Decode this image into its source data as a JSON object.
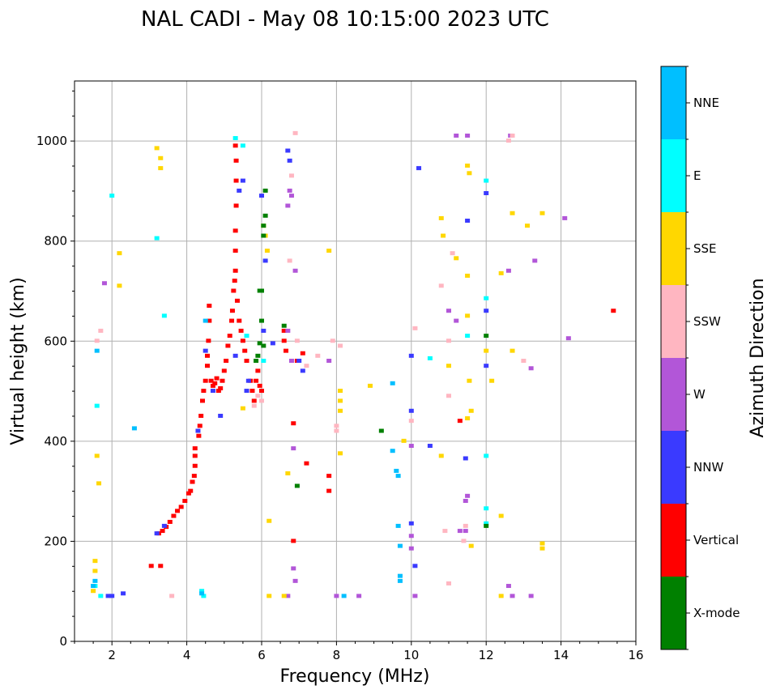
{
  "chart_data": {
    "type": "scatter",
    "title": "NAL CADI - May 08 10:15:00 2023 UTC",
    "xlabel": "Frequency (MHz)",
    "ylabel": "Virtual height (km)",
    "xlim": [
      1,
      16
    ],
    "ylim": [
      0,
      1120
    ],
    "xticks": [
      2,
      4,
      6,
      8,
      10,
      12,
      14,
      16
    ],
    "yticks": [
      0,
      200,
      400,
      600,
      800,
      1000
    ],
    "grid": true,
    "colorbar": {
      "label": "Azimuth Direction",
      "categories": [
        {
          "name": "X-mode",
          "color": "#008000"
        },
        {
          "name": "Vertical",
          "color": "#ff0000"
        },
        {
          "name": "NNW",
          "color": "#3a3aff"
        },
        {
          "name": "W",
          "color": "#b256d8"
        },
        {
          "name": "SSW",
          "color": "#ffb6c1"
        },
        {
          "name": "SSE",
          "color": "#ffd700"
        },
        {
          "name": "E",
          "color": "#00ffff"
        },
        {
          "name": "NNE",
          "color": "#00bfff"
        }
      ]
    },
    "series": [
      {
        "name": "Vertical",
        "points": [
          [
            3.25,
            215
          ],
          [
            3.35,
            220
          ],
          [
            3.45,
            228
          ],
          [
            3.55,
            238
          ],
          [
            3.65,
            250
          ],
          [
            3.75,
            260
          ],
          [
            3.85,
            268
          ],
          [
            3.95,
            280
          ],
          [
            4.05,
            295
          ],
          [
            4.1,
            300
          ],
          [
            4.15,
            318
          ],
          [
            4.2,
            330
          ],
          [
            4.22,
            350
          ],
          [
            4.22,
            370
          ],
          [
            4.22,
            385
          ],
          [
            4.32,
            410
          ],
          [
            4.35,
            430
          ],
          [
            4.38,
            450
          ],
          [
            4.42,
            480
          ],
          [
            4.45,
            500
          ],
          [
            4.5,
            520
          ],
          [
            4.55,
            550
          ],
          [
            4.55,
            570
          ],
          [
            4.58,
            600
          ],
          [
            4.6,
            640
          ],
          [
            4.6,
            670
          ],
          [
            4.65,
            520
          ],
          [
            4.7,
            510
          ],
          [
            4.75,
            515
          ],
          [
            4.8,
            525
          ],
          [
            4.85,
            500
          ],
          [
            4.9,
            505
          ],
          [
            4.95,
            520
          ],
          [
            5.0,
            540
          ],
          [
            5.05,
            560
          ],
          [
            5.1,
            590
          ],
          [
            5.15,
            610
          ],
          [
            5.2,
            640
          ],
          [
            5.22,
            660
          ],
          [
            5.25,
            700
          ],
          [
            5.28,
            720
          ],
          [
            5.3,
            740
          ],
          [
            5.3,
            780
          ],
          [
            5.3,
            820
          ],
          [
            5.32,
            870
          ],
          [
            5.32,
            920
          ],
          [
            5.32,
            960
          ],
          [
            5.3,
            990
          ],
          [
            5.35,
            680
          ],
          [
            5.4,
            640
          ],
          [
            5.45,
            620
          ],
          [
            5.5,
            600
          ],
          [
            5.55,
            580
          ],
          [
            5.6,
            560
          ],
          [
            5.7,
            520
          ],
          [
            5.75,
            500
          ],
          [
            5.8,
            480
          ],
          [
            5.85,
            520
          ],
          [
            5.9,
            540
          ],
          [
            5.95,
            510
          ],
          [
            6.0,
            500
          ],
          [
            6.6,
            620
          ],
          [
            6.6,
            600
          ],
          [
            6.65,
            580
          ],
          [
            6.85,
            435
          ],
          [
            6.85,
            200
          ],
          [
            6.95,
            560
          ],
          [
            7.1,
            575
          ],
          [
            7.2,
            355
          ],
          [
            7.8,
            330
          ],
          [
            7.8,
            300
          ],
          [
            11.3,
            440
          ],
          [
            15.4,
            660
          ],
          [
            3.05,
            150
          ],
          [
            3.3,
            150
          ]
        ]
      },
      {
        "name": "NNW",
        "points": [
          [
            3.2,
            215
          ],
          [
            3.4,
            230
          ],
          [
            4.3,
            420
          ],
          [
            4.5,
            580
          ],
          [
            4.7,
            500
          ],
          [
            4.9,
            450
          ],
          [
            5.3,
            570
          ],
          [
            5.4,
            900
          ],
          [
            5.5,
            920
          ],
          [
            5.6,
            500
          ],
          [
            5.65,
            520
          ],
          [
            6.1,
            760
          ],
          [
            6.05,
            620
          ],
          [
            6.3,
            595
          ],
          [
            6.7,
            980
          ],
          [
            6.75,
            960
          ],
          [
            7.0,
            560
          ],
          [
            7.1,
            540
          ],
          [
            10.0,
            570
          ],
          [
            10.0,
            460
          ],
          [
            10.2,
            945
          ],
          [
            10.5,
            390
          ],
          [
            10.0,
            235
          ],
          [
            10.1,
            150
          ],
          [
            11.5,
            840
          ],
          [
            11.45,
            365
          ],
          [
            12.0,
            895
          ],
          [
            12.0,
            550
          ],
          [
            12.0,
            660
          ],
          [
            1.9,
            90
          ],
          [
            2.0,
            90
          ],
          [
            2.3,
            95
          ],
          [
            6.0,
            890
          ]
        ]
      },
      {
        "name": "W",
        "points": [
          [
            6.7,
            870
          ],
          [
            6.75,
            900
          ],
          [
            6.8,
            890
          ],
          [
            6.7,
            620
          ],
          [
            6.8,
            560
          ],
          [
            6.85,
            385
          ],
          [
            6.85,
            145
          ],
          [
            6.9,
            120
          ],
          [
            6.7,
            90
          ],
          [
            7.8,
            560
          ],
          [
            8.0,
            90
          ],
          [
            8.6,
            90
          ],
          [
            10.0,
            390
          ],
          [
            10.0,
            210
          ],
          [
            10.0,
            185
          ],
          [
            10.1,
            90
          ],
          [
            11.2,
            1010
          ],
          [
            11.5,
            1010
          ],
          [
            11.5,
            290
          ],
          [
            11.45,
            280
          ],
          [
            11.45,
            220
          ],
          [
            11.3,
            220
          ],
          [
            11.2,
            640
          ],
          [
            11.0,
            660
          ],
          [
            12.6,
            740
          ],
          [
            12.65,
            1010
          ],
          [
            12.6,
            110
          ],
          [
            12.7,
            90
          ],
          [
            13.3,
            760
          ],
          [
            13.2,
            545
          ],
          [
            13.2,
            90
          ],
          [
            14.1,
            845
          ],
          [
            14.2,
            605
          ],
          [
            6.9,
            740
          ],
          [
            1.8,
            715
          ]
        ]
      },
      {
        "name": "SSW",
        "points": [
          [
            5.9,
            490
          ],
          [
            6.0,
            480
          ],
          [
            5.8,
            470
          ],
          [
            6.75,
            760
          ],
          [
            6.8,
            930
          ],
          [
            6.9,
            1015
          ],
          [
            6.95,
            600
          ],
          [
            7.2,
            550
          ],
          [
            7.5,
            570
          ],
          [
            7.9,
            600
          ],
          [
            8.1,
            590
          ],
          [
            8.0,
            420
          ],
          [
            8.0,
            430
          ],
          [
            10.1,
            625
          ],
          [
            10.0,
            440
          ],
          [
            10.8,
            710
          ],
          [
            11.0,
            600
          ],
          [
            11.0,
            490
          ],
          [
            11.1,
            775
          ],
          [
            11.4,
            200
          ],
          [
            11.45,
            230
          ],
          [
            12.6,
            1000
          ],
          [
            12.7,
            1010
          ],
          [
            13.0,
            560
          ],
          [
            10.9,
            220
          ],
          [
            11.0,
            115
          ],
          [
            1.6,
            600
          ],
          [
            1.7,
            620
          ],
          [
            3.6,
            90
          ]
        ]
      },
      {
        "name": "SSE",
        "points": [
          [
            1.5,
            100
          ],
          [
            1.55,
            140
          ],
          [
            1.55,
            160
          ],
          [
            1.6,
            370
          ],
          [
            1.65,
            315
          ],
          [
            2.2,
            775
          ],
          [
            2.2,
            710
          ],
          [
            3.2,
            985
          ],
          [
            3.3,
            945
          ],
          [
            3.3,
            965
          ],
          [
            5.5,
            465
          ],
          [
            6.05,
            830
          ],
          [
            6.1,
            810
          ],
          [
            6.15,
            780
          ],
          [
            6.2,
            240
          ],
          [
            6.6,
            90
          ],
          [
            6.7,
            335
          ],
          [
            7.8,
            780
          ],
          [
            8.1,
            500
          ],
          [
            8.1,
            480
          ],
          [
            8.1,
            460
          ],
          [
            8.1,
            375
          ],
          [
            8.9,
            510
          ],
          [
            9.8,
            400
          ],
          [
            10.8,
            845
          ],
          [
            10.8,
            370
          ],
          [
            10.85,
            810
          ],
          [
            11.0,
            550
          ],
          [
            11.2,
            765
          ],
          [
            11.5,
            950
          ],
          [
            11.55,
            935
          ],
          [
            11.5,
            730
          ],
          [
            11.5,
            650
          ],
          [
            11.55,
            520
          ],
          [
            11.5,
            445
          ],
          [
            11.6,
            460
          ],
          [
            11.6,
            190
          ],
          [
            12.0,
            580
          ],
          [
            12.15,
            520
          ],
          [
            12.4,
            735
          ],
          [
            12.4,
            250
          ],
          [
            12.4,
            90
          ],
          [
            12.7,
            855
          ],
          [
            12.7,
            580
          ],
          [
            13.1,
            830
          ],
          [
            13.5,
            855
          ],
          [
            13.5,
            195
          ],
          [
            13.5,
            185
          ],
          [
            6.2,
            90
          ]
        ]
      },
      {
        "name": "E",
        "points": [
          [
            2.0,
            890
          ],
          [
            3.2,
            805
          ],
          [
            3.4,
            650
          ],
          [
            1.6,
            470
          ],
          [
            4.45,
            90
          ],
          [
            4.4,
            100
          ],
          [
            5.5,
            990
          ],
          [
            5.3,
            1005
          ],
          [
            5.6,
            610
          ],
          [
            6.05,
            560
          ],
          [
            10.5,
            565
          ],
          [
            11.5,
            610
          ],
          [
            12.0,
            920
          ],
          [
            12.0,
            685
          ],
          [
            12.0,
            370
          ],
          [
            12.0,
            265
          ],
          [
            12.0,
            235
          ],
          [
            1.55,
            110
          ],
          [
            1.7,
            90
          ]
        ]
      },
      {
        "name": "NNE",
        "points": [
          [
            1.5,
            110
          ],
          [
            1.55,
            120
          ],
          [
            1.6,
            580
          ],
          [
            2.6,
            425
          ],
          [
            4.4,
            95
          ],
          [
            4.5,
            640
          ],
          [
            9.5,
            515
          ],
          [
            9.6,
            340
          ],
          [
            9.65,
            330
          ],
          [
            9.65,
            230
          ],
          [
            9.7,
            190
          ],
          [
            9.7,
            130
          ],
          [
            9.7,
            120
          ],
          [
            8.2,
            90
          ],
          [
            9.5,
            380
          ]
        ]
      },
      {
        "name": "X-mode",
        "points": [
          [
            5.9,
            570
          ],
          [
            5.95,
            595
          ],
          [
            6.0,
            640
          ],
          [
            6.0,
            700
          ],
          [
            6.05,
            810
          ],
          [
            6.05,
            830
          ],
          [
            6.1,
            850
          ],
          [
            6.1,
            900
          ],
          [
            5.95,
            700
          ],
          [
            6.6,
            630
          ],
          [
            6.95,
            310
          ],
          [
            9.2,
            420
          ],
          [
            12.0,
            610
          ],
          [
            12.0,
            230
          ],
          [
            5.85,
            560
          ],
          [
            6.05,
            590
          ]
        ]
      }
    ]
  }
}
